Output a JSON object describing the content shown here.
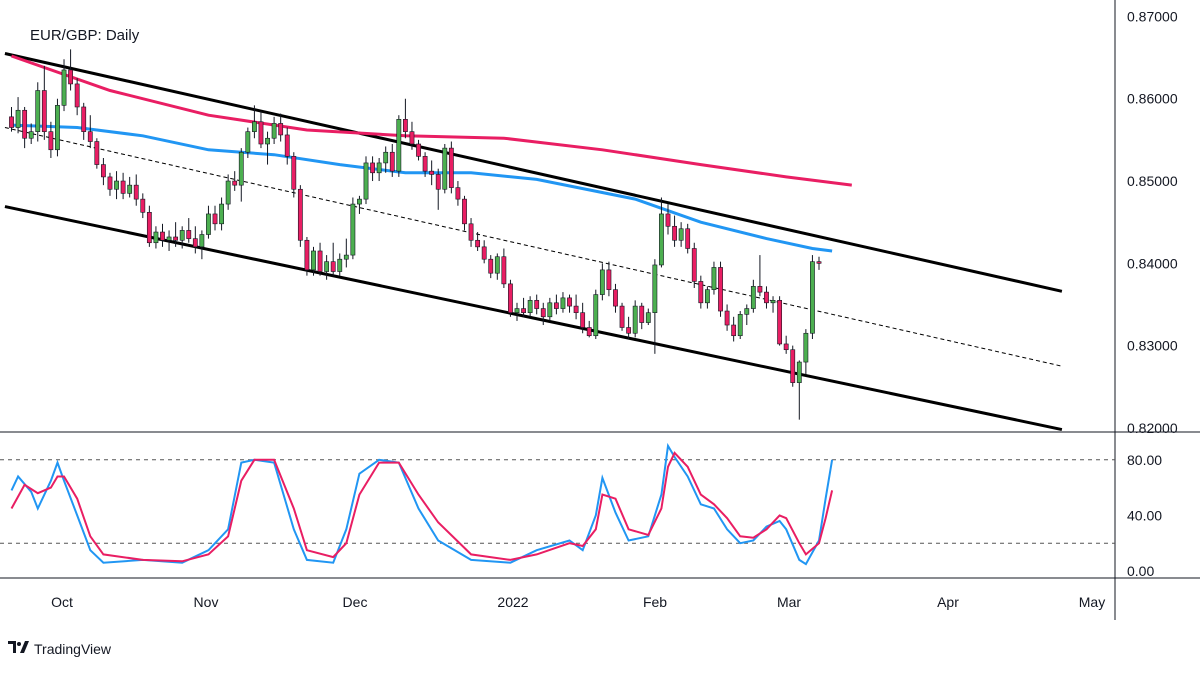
{
  "chart_data": {
    "type": "candlestick",
    "title": "EUR/GBP: Daily",
    "brand": "TradingView",
    "brand_logo": "tradingview-logo-icon",
    "colors": {
      "up": "#4caf50",
      "down": "#e91e63",
      "wick": "#131722",
      "channel": "#000000",
      "ma_fast": "#2196f3",
      "ma_slow": "#e91e63",
      "stoch_k": "#2196f3",
      "stoch_d": "#e91e63",
      "grid": "#131722"
    },
    "y_axis": {
      "ticks": [
        "0.87000",
        "0.86000",
        "0.85000",
        "0.84000",
        "0.83000",
        "0.82000"
      ],
      "ylim": [
        0.8195,
        0.872
      ]
    },
    "x_axis": {
      "labels": [
        "Oct",
        "Nov",
        "Dec",
        "2022",
        "Feb",
        "Mar",
        "Apr",
        "May"
      ]
    },
    "candles": [
      [
        0.8578,
        0.859,
        0.856,
        0.8565
      ],
      [
        0.8565,
        0.8602,
        0.8558,
        0.8586
      ],
      [
        0.8586,
        0.859,
        0.854,
        0.8552
      ],
      [
        0.8552,
        0.857,
        0.8545,
        0.856
      ],
      [
        0.856,
        0.862,
        0.8548,
        0.861
      ],
      [
        0.861,
        0.864,
        0.855,
        0.856
      ],
      [
        0.856,
        0.8572,
        0.8528,
        0.8538
      ],
      [
        0.8538,
        0.86,
        0.853,
        0.8592
      ],
      [
        0.8592,
        0.8648,
        0.8585,
        0.8635
      ],
      [
        0.8635,
        0.866,
        0.861,
        0.8618
      ],
      [
        0.8618,
        0.8625,
        0.858,
        0.859
      ],
      [
        0.859,
        0.8595,
        0.855,
        0.856
      ],
      [
        0.856,
        0.858,
        0.854,
        0.8548
      ],
      [
        0.8548,
        0.8552,
        0.8515,
        0.852
      ],
      [
        0.852,
        0.8528,
        0.8495,
        0.8505
      ],
      [
        0.8505,
        0.851,
        0.8482,
        0.849
      ],
      [
        0.849,
        0.8512,
        0.8478,
        0.85
      ],
      [
        0.85,
        0.851,
        0.8478,
        0.8485
      ],
      [
        0.8485,
        0.8505,
        0.848,
        0.8495
      ],
      [
        0.8495,
        0.8508,
        0.847,
        0.8478
      ],
      [
        0.8478,
        0.8485,
        0.8455,
        0.8462
      ],
      [
        0.8462,
        0.847,
        0.842,
        0.8425
      ],
      [
        0.8425,
        0.8445,
        0.8418,
        0.8438
      ],
      [
        0.8438,
        0.8448,
        0.842,
        0.8428
      ],
      [
        0.8428,
        0.844,
        0.8415,
        0.8432
      ],
      [
        0.8432,
        0.845,
        0.842,
        0.8428
      ],
      [
        0.8428,
        0.8445,
        0.8418,
        0.844
      ],
      [
        0.844,
        0.8455,
        0.8425,
        0.843
      ],
      [
        0.843,
        0.8445,
        0.8412,
        0.842
      ],
      [
        0.842,
        0.844,
        0.8405,
        0.8435
      ],
      [
        0.8435,
        0.847,
        0.843,
        0.846
      ],
      [
        0.846,
        0.847,
        0.844,
        0.8448
      ],
      [
        0.8448,
        0.848,
        0.844,
        0.8472
      ],
      [
        0.8472,
        0.8508,
        0.8465,
        0.85
      ],
      [
        0.85,
        0.8512,
        0.8488,
        0.8495
      ],
      [
        0.8495,
        0.854,
        0.8475,
        0.8535
      ],
      [
        0.8535,
        0.8565,
        0.8528,
        0.856
      ],
      [
        0.856,
        0.8592,
        0.8552,
        0.8572
      ],
      [
        0.8572,
        0.8585,
        0.854,
        0.8545
      ],
      [
        0.8545,
        0.856,
        0.852,
        0.8552
      ],
      [
        0.8552,
        0.8578,
        0.8545,
        0.857
      ],
      [
        0.857,
        0.8582,
        0.8548,
        0.8556
      ],
      [
        0.8556,
        0.8565,
        0.852,
        0.853
      ],
      [
        0.853,
        0.8535,
        0.848,
        0.849
      ],
      [
        0.849,
        0.8495,
        0.842,
        0.8428
      ],
      [
        0.8428,
        0.8432,
        0.8385,
        0.8392
      ],
      [
        0.8392,
        0.842,
        0.8385,
        0.8415
      ],
      [
        0.8415,
        0.8425,
        0.8385,
        0.839
      ],
      [
        0.839,
        0.841,
        0.838,
        0.8402
      ],
      [
        0.8402,
        0.8425,
        0.8385,
        0.839
      ],
      [
        0.839,
        0.8412,
        0.8385,
        0.8405
      ],
      [
        0.8405,
        0.843,
        0.8395,
        0.841
      ],
      [
        0.841,
        0.848,
        0.8405,
        0.8472
      ],
      [
        0.8472,
        0.8482,
        0.846,
        0.8478
      ],
      [
        0.8478,
        0.853,
        0.8472,
        0.8522
      ],
      [
        0.8522,
        0.853,
        0.85,
        0.851
      ],
      [
        0.851,
        0.8528,
        0.85,
        0.8522
      ],
      [
        0.8522,
        0.8542,
        0.851,
        0.8535
      ],
      [
        0.8535,
        0.8545,
        0.8505,
        0.8512
      ],
      [
        0.8512,
        0.858,
        0.8505,
        0.8575
      ],
      [
        0.8575,
        0.86,
        0.8552,
        0.856
      ],
      [
        0.856,
        0.8572,
        0.8538,
        0.8545
      ],
      [
        0.8545,
        0.855,
        0.8525,
        0.853
      ],
      [
        0.853,
        0.8535,
        0.8505,
        0.8512
      ],
      [
        0.8512,
        0.8525,
        0.8495,
        0.8508
      ],
      [
        0.8508,
        0.8515,
        0.8465,
        0.849
      ],
      [
        0.849,
        0.8545,
        0.8485,
        0.854
      ],
      [
        0.854,
        0.8548,
        0.8485,
        0.8492
      ],
      [
        0.8492,
        0.85,
        0.847,
        0.8478
      ],
      [
        0.8478,
        0.8482,
        0.844,
        0.8448
      ],
      [
        0.8448,
        0.8455,
        0.842,
        0.8428
      ],
      [
        0.8428,
        0.8438,
        0.8415,
        0.842
      ],
      [
        0.842,
        0.8428,
        0.84,
        0.8405
      ],
      [
        0.8405,
        0.841,
        0.8382,
        0.8388
      ],
      [
        0.8388,
        0.8412,
        0.838,
        0.8408
      ],
      [
        0.8408,
        0.8418,
        0.837,
        0.8375
      ],
      [
        0.8375,
        0.838,
        0.8335,
        0.834
      ],
      [
        0.834,
        0.8352,
        0.833,
        0.8345
      ],
      [
        0.8345,
        0.8358,
        0.8335,
        0.834
      ],
      [
        0.834,
        0.836,
        0.8335,
        0.8355
      ],
      [
        0.8355,
        0.8362,
        0.8338,
        0.8345
      ],
      [
        0.8345,
        0.8352,
        0.8325,
        0.8335
      ],
      [
        0.8335,
        0.8358,
        0.833,
        0.8352
      ],
      [
        0.8352,
        0.8362,
        0.8338,
        0.8345
      ],
      [
        0.8345,
        0.8365,
        0.834,
        0.8358
      ],
      [
        0.8358,
        0.8362,
        0.834,
        0.8348
      ],
      [
        0.8348,
        0.8362,
        0.8332,
        0.834
      ],
      [
        0.834,
        0.8352,
        0.8315,
        0.8322
      ],
      [
        0.8322,
        0.833,
        0.831,
        0.8312
      ],
      [
        0.8312,
        0.8368,
        0.8308,
        0.8362
      ],
      [
        0.8362,
        0.84,
        0.8355,
        0.8392
      ],
      [
        0.8392,
        0.8402,
        0.836,
        0.8368
      ],
      [
        0.8368,
        0.8375,
        0.834,
        0.8348
      ],
      [
        0.8348,
        0.8352,
        0.8318,
        0.8322
      ],
      [
        0.8322,
        0.8335,
        0.8308,
        0.8315
      ],
      [
        0.8315,
        0.8355,
        0.831,
        0.8348
      ],
      [
        0.8348,
        0.8352,
        0.832,
        0.8328
      ],
      [
        0.8328,
        0.8345,
        0.8325,
        0.834
      ],
      [
        0.834,
        0.8405,
        0.829,
        0.8398
      ],
      [
        0.8398,
        0.848,
        0.8395,
        0.846
      ],
      [
        0.846,
        0.8472,
        0.8435,
        0.8445
      ],
      [
        0.8445,
        0.8458,
        0.842,
        0.8428
      ],
      [
        0.8428,
        0.845,
        0.842,
        0.8442
      ],
      [
        0.8442,
        0.8448,
        0.8412,
        0.8418
      ],
      [
        0.8418,
        0.8425,
        0.837,
        0.8378
      ],
      [
        0.8378,
        0.8385,
        0.8345,
        0.8352
      ],
      [
        0.8352,
        0.8372,
        0.8345,
        0.8368
      ],
      [
        0.8368,
        0.8402,
        0.8362,
        0.8395
      ],
      [
        0.8395,
        0.8402,
        0.8335,
        0.8342
      ],
      [
        0.8342,
        0.835,
        0.8318,
        0.8325
      ],
      [
        0.8325,
        0.8335,
        0.8305,
        0.8312
      ],
      [
        0.8312,
        0.8342,
        0.8308,
        0.8338
      ],
      [
        0.8338,
        0.835,
        0.8325,
        0.8345
      ],
      [
        0.8345,
        0.838,
        0.834,
        0.8372
      ],
      [
        0.8372,
        0.841,
        0.836,
        0.8365
      ],
      [
        0.8365,
        0.8372,
        0.8345,
        0.8352
      ],
      [
        0.8352,
        0.836,
        0.834,
        0.8355
      ],
      [
        0.8355,
        0.836,
        0.83,
        0.8302
      ],
      [
        0.8302,
        0.8312,
        0.829,
        0.8295
      ],
      [
        0.8295,
        0.83,
        0.825,
        0.8255
      ],
      [
        0.8255,
        0.8282,
        0.821,
        0.828
      ],
      [
        0.828,
        0.832,
        0.8265,
        0.8315
      ],
      [
        0.8315,
        0.841,
        0.8308,
        0.8402
      ],
      [
        0.8402,
        0.8408,
        0.8392,
        0.84
      ]
    ],
    "ma_slow": [
      [
        0,
        0.8652
      ],
      [
        15,
        0.861
      ],
      [
        30,
        0.858
      ],
      [
        45,
        0.8562
      ],
      [
        60,
        0.8555
      ],
      [
        75,
        0.8552
      ],
      [
        90,
        0.8538
      ],
      [
        105,
        0.852
      ],
      [
        118,
        0.8505
      ],
      [
        128,
        0.8495
      ]
    ],
    "ma_fast": [
      [
        0,
        0.8568
      ],
      [
        10,
        0.8565
      ],
      [
        20,
        0.8555
      ],
      [
        30,
        0.8538
      ],
      [
        40,
        0.8532
      ],
      [
        50,
        0.852
      ],
      [
        60,
        0.851
      ],
      [
        70,
        0.851
      ],
      [
        80,
        0.8502
      ],
      [
        95,
        0.8478
      ],
      [
        105,
        0.845
      ],
      [
        115,
        0.843
      ],
      [
        122,
        0.8418
      ],
      [
        125,
        0.8415
      ]
    ],
    "channel_upper": [
      [
        -1,
        0.8655
      ],
      [
        160,
        0.8366
      ]
    ],
    "channel_lower": [
      [
        -1,
        0.8469
      ],
      [
        160,
        0.8198
      ]
    ],
    "channel_mid": [
      [
        -1,
        0.8565
      ],
      [
        160,
        0.8275
      ]
    ],
    "stochastic": {
      "ticks": [
        "80.00",
        "40.00",
        "0.00"
      ],
      "levels": [
        80,
        20
      ],
      "ylim": [
        -5,
        100
      ],
      "k": [
        [
          0,
          58
        ],
        [
          1,
          68
        ],
        [
          3,
          57
        ],
        [
          4,
          45
        ],
        [
          6,
          65
        ],
        [
          7,
          78
        ],
        [
          8,
          65
        ],
        [
          10,
          40
        ],
        [
          12,
          15
        ],
        [
          14,
          6
        ],
        [
          20,
          8
        ],
        [
          26,
          6
        ],
        [
          30,
          15
        ],
        [
          33,
          30
        ],
        [
          35,
          78
        ],
        [
          37,
          80
        ],
        [
          40,
          78
        ],
        [
          43,
          30
        ],
        [
          45,
          8
        ],
        [
          49,
          6
        ],
        [
          51,
          30
        ],
        [
          53,
          70
        ],
        [
          56,
          80
        ],
        [
          59,
          78
        ],
        [
          62,
          45
        ],
        [
          65,
          22
        ],
        [
          70,
          8
        ],
        [
          76,
          6
        ],
        [
          80,
          15
        ],
        [
          85,
          22
        ],
        [
          87,
          15
        ],
        [
          89,
          40
        ],
        [
          90,
          67
        ],
        [
          92,
          42
        ],
        [
          94,
          22
        ],
        [
          97,
          25
        ],
        [
          99,
          55
        ],
        [
          100,
          90
        ],
        [
          101,
          82
        ],
        [
          103,
          68
        ],
        [
          105,
          48
        ],
        [
          107,
          45
        ],
        [
          109,
          30
        ],
        [
          111,
          20
        ],
        [
          113,
          22
        ],
        [
          115,
          32
        ],
        [
          117,
          36
        ],
        [
          118,
          30
        ],
        [
          120,
          8
        ],
        [
          121,
          5
        ],
        [
          123,
          22
        ],
        [
          124,
          52
        ],
        [
          125,
          80
        ]
      ],
      "d": [
        [
          0,
          45
        ],
        [
          2,
          62
        ],
        [
          4,
          56
        ],
        [
          6,
          60
        ],
        [
          7,
          68
        ],
        [
          8,
          68
        ],
        [
          10,
          52
        ],
        [
          12,
          25
        ],
        [
          14,
          12
        ],
        [
          20,
          8
        ],
        [
          26,
          7
        ],
        [
          30,
          12
        ],
        [
          33,
          25
        ],
        [
          35,
          65
        ],
        [
          37,
          80
        ],
        [
          40,
          80
        ],
        [
          43,
          45
        ],
        [
          45,
          15
        ],
        [
          49,
          10
        ],
        [
          51,
          20
        ],
        [
          53,
          55
        ],
        [
          56,
          78
        ],
        [
          59,
          78
        ],
        [
          62,
          55
        ],
        [
          65,
          35
        ],
        [
          70,
          12
        ],
        [
          76,
          8
        ],
        [
          80,
          12
        ],
        [
          85,
          20
        ],
        [
          87,
          18
        ],
        [
          89,
          30
        ],
        [
          90,
          55
        ],
        [
          92,
          52
        ],
        [
          94,
          30
        ],
        [
          97,
          26
        ],
        [
          99,
          45
        ],
        [
          100,
          75
        ],
        [
          101,
          85
        ],
        [
          103,
          75
        ],
        [
          105,
          55
        ],
        [
          107,
          48
        ],
        [
          109,
          38
        ],
        [
          111,
          25
        ],
        [
          113,
          24
        ],
        [
          115,
          30
        ],
        [
          117,
          40
        ],
        [
          118,
          38
        ],
        [
          120,
          20
        ],
        [
          121,
          12
        ],
        [
          123,
          20
        ],
        [
          124,
          38
        ],
        [
          125,
          58
        ]
      ]
    }
  }
}
